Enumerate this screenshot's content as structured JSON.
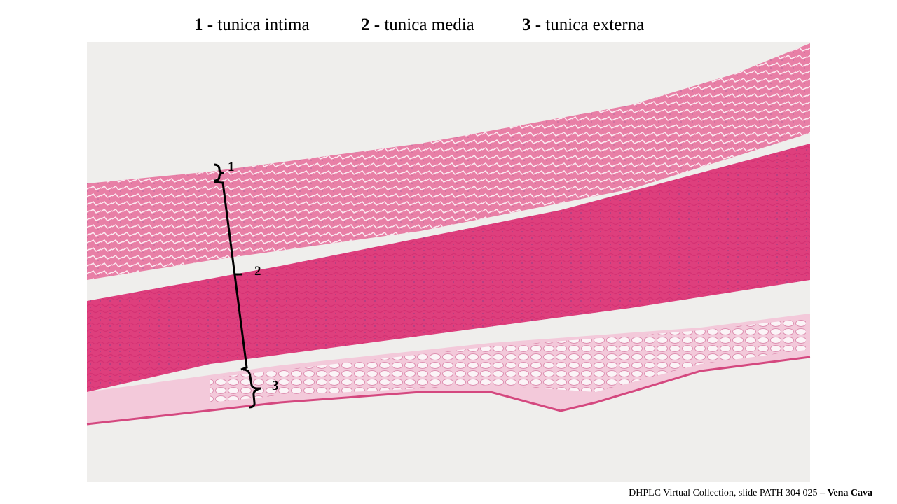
{
  "legend": [
    {
      "number": "1",
      "label": "- tunica intima"
    },
    {
      "number": "2",
      "label": "- tunica media"
    },
    {
      "number": "3",
      "label": "- tunica externa"
    }
  ],
  "annotations": [
    "1",
    "2",
    "3"
  ],
  "caption": {
    "text": "DHPLC Virtual Collection, slide PATH 304 025 –",
    "emphasis": "Vena Cava"
  }
}
